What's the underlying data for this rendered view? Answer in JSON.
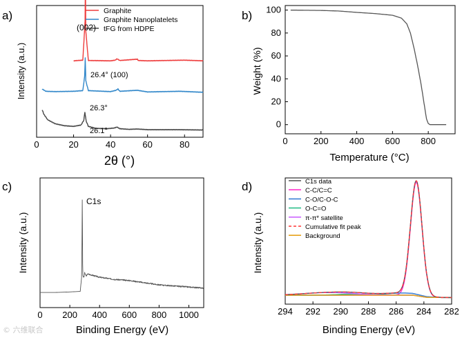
{
  "watermark": "© 六维联合",
  "chart_data": [
    {
      "panel_label": "a)",
      "type": "line",
      "xlabel": "2θ (°)",
      "ylabel": "Intensity (a.u.)",
      "xlim": [
        0,
        90
      ],
      "xticks": [
        0,
        20,
        40,
        60,
        80
      ],
      "yticks_visible": false,
      "legend": {
        "position": "top-right",
        "entries": [
          "Graphite",
          "Graphite Nanoplatelets",
          "tFG from HDPE"
        ]
      },
      "series": [
        {
          "name": "Graphite",
          "color": "#ee3b3b",
          "offset": 2.1,
          "x": [
            20,
            25,
            26.2,
            26.4,
            26.6,
            28,
            40,
            42.5,
            43.5,
            45,
            54.5,
            55,
            60,
            80,
            90
          ],
          "y": [
            0,
            0.02,
            1.2,
            2.3,
            0.9,
            0.01,
            0,
            0.02,
            0.06,
            0.01,
            0.05,
            0.01,
            0,
            0.02,
            0
          ]
        },
        {
          "name": "Graphite Nanoplatelets",
          "color": "#2f86c9",
          "offset": 1.15,
          "x": [
            3,
            5,
            10,
            20,
            25,
            26,
            26.3,
            26.6,
            28,
            40,
            43,
            44,
            45,
            54.5,
            60,
            77.5,
            90
          ],
          "y": [
            0.1,
            0.03,
            0.02,
            0.03,
            0.05,
            0.5,
            1.05,
            0.35,
            0.05,
            0.02,
            0.06,
            0.1,
            0.03,
            0.06,
            0.01,
            0.03,
            0
          ]
        },
        {
          "name": "tFG from HDPE",
          "color": "#444444",
          "offset": 0,
          "x": [
            3,
            4,
            6,
            10,
            15,
            20,
            24,
            25.5,
            26.1,
            26.8,
            28,
            32,
            38,
            42,
            43.5,
            45,
            50,
            54.5,
            60,
            77.5,
            90
          ],
          "y": [
            0.62,
            0.48,
            0.32,
            0.2,
            0.14,
            0.12,
            0.16,
            0.3,
            0.55,
            0.28,
            0.12,
            0.06,
            0.05,
            0.07,
            0.1,
            0.05,
            0.03,
            0.04,
            0.02,
            0.02,
            0.01
          ]
        }
      ],
      "annotations": [
        {
          "text": "(002)",
          "x": 26.4
        },
        {
          "text": "26.4° (100)",
          "x": 26.4
        },
        {
          "text": "26.3°",
          "x": 26.3
        },
        {
          "text": "26.1°",
          "x": 26.1
        }
      ]
    },
    {
      "panel_label": "b)",
      "type": "line",
      "xlabel": "Temperature (°C)",
      "ylabel": "Weight (%)",
      "xlim": [
        0,
        950
      ],
      "ylim": [
        -8,
        104
      ],
      "xticks": [
        0,
        200,
        400,
        600,
        800
      ],
      "yticks": [
        0,
        20,
        40,
        60,
        80,
        100
      ],
      "series": [
        {
          "name": "TGA",
          "color": "#555555",
          "x": [
            30,
            200,
            300,
            400,
            500,
            600,
            650,
            680,
            700,
            720,
            740,
            760,
            780,
            790,
            800,
            810,
            900
          ],
          "y": [
            100,
            99.7,
            99.2,
            98,
            97,
            95.5,
            93,
            88,
            80,
            67,
            52,
            35,
            15,
            5,
            1,
            0,
            0
          ]
        }
      ]
    },
    {
      "panel_label": "c)",
      "type": "line",
      "xlabel": "Binding Energy (eV)",
      "ylabel": "Intensity (a.u.)",
      "xlim": [
        0,
        1100
      ],
      "xticks": [
        0,
        200,
        400,
        600,
        800,
        1000
      ],
      "yticks_visible": false,
      "annotations": [
        {
          "text": "C1s",
          "x": 284
        }
      ],
      "series": [
        {
          "name": "Survey",
          "color": "#555555",
          "x": [
            0,
            100,
            200,
            270,
            280,
            284,
            286,
            288,
            295,
            300,
            310,
            320,
            400,
            500,
            600,
            700,
            800,
            900,
            1000,
            1100
          ],
          "y": [
            0.05,
            0.05,
            0.055,
            0.06,
            0.2,
            1.0,
            0.35,
            0.2,
            0.19,
            0.23,
            0.2,
            0.22,
            0.19,
            0.17,
            0.16,
            0.14,
            0.12,
            0.11,
            0.1,
            0.09
          ]
        }
      ]
    },
    {
      "panel_label": "d)",
      "type": "line",
      "xlabel": "Binding Energy (eV)",
      "ylabel": "Intensity (a.u.)",
      "xlim": [
        294,
        282
      ],
      "x_reversed": true,
      "xticks": [
        294,
        292,
        290,
        288,
        286,
        284,
        282
      ],
      "yticks_visible": false,
      "legend": {
        "position": "top-left",
        "entries": [
          "C1s data",
          "C-C/C=C",
          "C-O/C-O-C",
          "O-C=O",
          "π-π* satellite",
          "Cumulative fit peak",
          "Background"
        ]
      },
      "series": [
        {
          "name": "C1s data",
          "color": "#555555",
          "style": "solid"
        },
        {
          "name": "C-C/C=C",
          "color": "#ff33cc",
          "style": "solid",
          "center": 284.55,
          "height": 0.94,
          "width": 0.42
        },
        {
          "name": "C-O/C-O-C",
          "color": "#3a7fd5",
          "style": "solid",
          "center": 285.6,
          "height": 0.018,
          "width": 1.2
        },
        {
          "name": "O-C=O",
          "color": "#2bbf8a",
          "style": "solid",
          "center": 288.9,
          "height": 0.01,
          "width": 1.2
        },
        {
          "name": "π-π* satellite",
          "color": "#cc66ff",
          "style": "solid",
          "center": 290.8,
          "height": 0.022,
          "width": 1.8
        },
        {
          "name": "Cumulative fit peak",
          "color": "#ff3333",
          "style": "dashed"
        },
        {
          "name": "Background",
          "color": "#e6a21a",
          "style": "solid",
          "x": [
            294,
            284.8,
            283.8,
            282
          ],
          "y": [
            0.0,
            0.0,
            -0.018,
            -0.02
          ]
        }
      ]
    }
  ]
}
